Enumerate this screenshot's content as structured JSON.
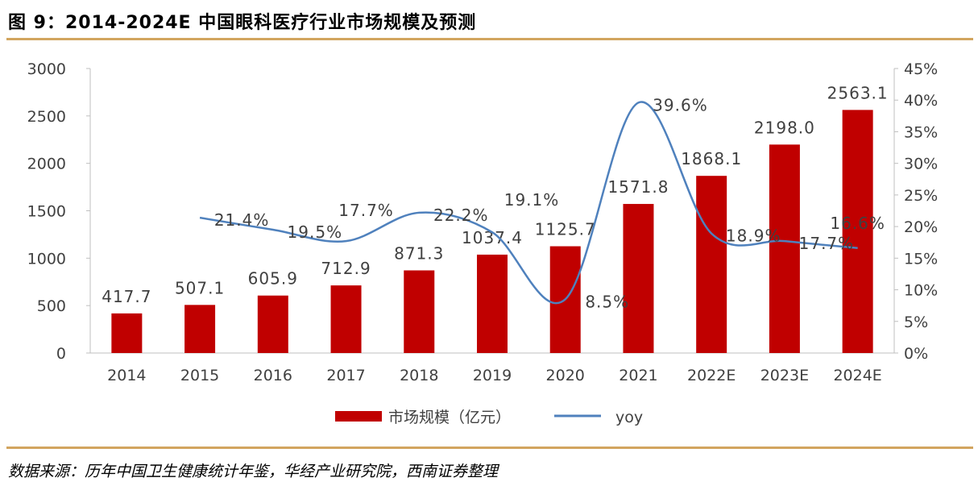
{
  "title": "图 9：2014-2024E 中国眼科医疗行业市场规模及预测",
  "source": "数据来源：历年中国卫生健康统计年鉴，华经产业研究院，西南证券整理",
  "chart_data": {
    "type": "bar+line",
    "title": "图 9：2014-2024E 中国眼科医疗行业市场规模及预测",
    "categories": [
      "2014",
      "2015",
      "2016",
      "2017",
      "2018",
      "2019",
      "2020",
      "2021",
      "2022E",
      "2023E",
      "2024E"
    ],
    "series": [
      {
        "name": "市场规模（亿元）",
        "type": "bar",
        "axis": "left",
        "color": "#c00000",
        "values": [
          417.7,
          507.1,
          605.9,
          712.9,
          871.3,
          1037.4,
          1125.7,
          1571.8,
          1868.1,
          2198.0,
          2563.1
        ],
        "labels": [
          "417.7",
          "507.1",
          "605.9",
          "712.9",
          "871.3",
          "1037.4",
          "1125.7",
          "1571.8",
          "1868.1",
          "2198.0",
          "2563.1"
        ]
      },
      {
        "name": "yoy",
        "type": "line",
        "axis": "right",
        "color": "#4f81bd",
        "values": [
          null,
          21.4,
          19.5,
          17.7,
          22.2,
          19.1,
          8.5,
          39.6,
          18.9,
          17.7,
          16.6
        ],
        "labels": [
          null,
          "21.4%",
          "19.5%",
          "17.7%",
          "22.2%",
          "19.1%",
          "8.5%",
          "39.6%",
          "18.9%",
          "17.7%",
          "16.6%"
        ]
      }
    ],
    "left_axis": {
      "ylim": [
        0,
        3000
      ],
      "ticks": [
        "0",
        "500",
        "1000",
        "1500",
        "2000",
        "2500",
        "3000"
      ]
    },
    "right_axis": {
      "ylim": [
        0,
        45
      ],
      "ticks": [
        "0%",
        "5%",
        "10%",
        "15%",
        "20%",
        "25%",
        "30%",
        "35%",
        "40%",
        "45%"
      ]
    },
    "grid": false,
    "legend": "bottom"
  }
}
